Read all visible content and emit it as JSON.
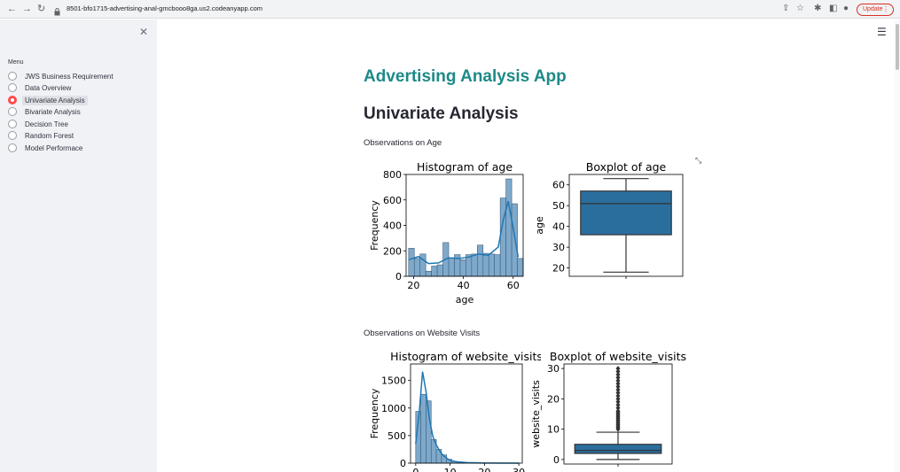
{
  "browser": {
    "url": "8501-bfo1715-advertising-anal-gmcbooo8ga.us2.codeanyapp.com",
    "update_label": "Update"
  },
  "sidebar": {
    "menu_title": "Menu",
    "items": [
      {
        "label": "JWS Business Requirement",
        "selected": false
      },
      {
        "label": "Data Overview",
        "selected": false
      },
      {
        "label": "Univariate Analysis",
        "selected": true
      },
      {
        "label": "Bivariate Analysis",
        "selected": false
      },
      {
        "label": "Decision Tree",
        "selected": false
      },
      {
        "label": "Random Forest",
        "selected": false
      },
      {
        "label": "Model Performace",
        "selected": false
      }
    ]
  },
  "main": {
    "app_title": "Advertising Analysis App",
    "page_title": "Univariate Analysis",
    "section_age": "Observations on Age",
    "section_visits": "Observations on Website Visits"
  },
  "colors": {
    "accent": "#1d8a87",
    "selected_radio": "#ff4b4b",
    "bar_fill": "#7fa9cb",
    "line": "#1f77b4",
    "box_fill": "#2a6e9e"
  },
  "chart_data": [
    {
      "type": "bar",
      "title": "Histogram of age",
      "xlabel": "age",
      "ylabel": "Frequency",
      "x_ticks": [
        20,
        40,
        60
      ],
      "y_ticks": [
        0,
        200,
        400,
        600,
        800
      ],
      "xlim": [
        17,
        64
      ],
      "ylim": [
        0,
        800
      ],
      "bin_edges": [
        18,
        20.3,
        22.6,
        24.9,
        27.2,
        29.5,
        31.8,
        34.1,
        36.4,
        38.7,
        41,
        43.3,
        45.6,
        47.9,
        50.2,
        52.5,
        54.8,
        57.1,
        59.4,
        61.7
      ],
      "values": [
        220,
        140,
        175,
        40,
        80,
        90,
        265,
        145,
        170,
        130,
        170,
        175,
        245,
        180,
        175,
        170,
        615,
        765,
        570,
        140
      ],
      "kde_x": [
        18,
        22,
        26,
        30,
        34,
        38,
        42,
        46,
        50,
        54,
        56,
        58,
        60,
        62
      ],
      "kde_y": [
        130,
        155,
        100,
        105,
        145,
        140,
        150,
        175,
        165,
        230,
        440,
        590,
        380,
        150
      ]
    },
    {
      "type": "box",
      "title": "Boxplot of age",
      "ylabel": "age",
      "y_ticks": [
        20,
        30,
        40,
        50,
        60
      ],
      "ylim": [
        16,
        65
      ],
      "whisker_low": 18,
      "q1": 36,
      "median": 51,
      "q3": 57,
      "whisker_high": 63
    },
    {
      "type": "bar",
      "title": "Histogram of website_visits",
      "xlabel": "",
      "ylabel": "Frequency",
      "x_ticks": [
        0,
        10,
        20,
        30
      ],
      "y_ticks": [
        0,
        500,
        1000,
        1500
      ],
      "xlim": [
        -1.5,
        31
      ],
      "ylim": [
        0,
        1800
      ],
      "bin_edges": [
        0,
        1.5,
        3,
        4.5,
        6,
        7.5,
        9,
        10.5,
        12,
        13.5,
        15
      ],
      "values": [
        940,
        1250,
        1130,
        430,
        250,
        150,
        70,
        35,
        20,
        10
      ],
      "kde_x": [
        0,
        1,
        2,
        3,
        4,
        5,
        6,
        7,
        8,
        9,
        10,
        12,
        15,
        20,
        30
      ],
      "kde_y": [
        350,
        900,
        1660,
        1300,
        800,
        480,
        330,
        220,
        140,
        90,
        50,
        25,
        10,
        3,
        0
      ]
    },
    {
      "type": "box",
      "title": "Boxplot of website_visits",
      "ylabel": "website_visits",
      "y_ticks": [
        0,
        10,
        20,
        30
      ],
      "ylim": [
        -1.5,
        31.5
      ],
      "whisker_low": 0,
      "q1": 2,
      "median": 3,
      "q3": 5,
      "whisker_high": 9,
      "outliers": [
        10,
        10.5,
        11,
        11.5,
        12,
        12.5,
        13,
        13.5,
        14,
        14.5,
        15,
        15.5,
        16,
        17,
        18,
        19,
        20,
        21,
        22,
        23,
        24,
        25,
        26,
        27,
        28,
        29,
        30
      ]
    }
  ]
}
